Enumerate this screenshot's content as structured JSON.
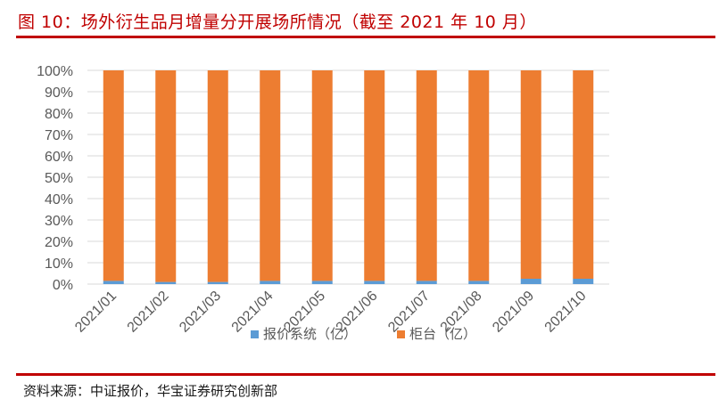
{
  "figure": {
    "title": "图 10：场外衍生品月增量分开展场所情况（截至 2021 年 10 月）",
    "source": "资料来源：中证报价，华宝证券研究创新部"
  },
  "colors": {
    "accent": "#c00000",
    "series_blue": "#5b9bd5",
    "series_orange": "#ed7d31",
    "grid": "#d9d9d9"
  },
  "chart_data": {
    "type": "bar",
    "stacked": true,
    "percent": true,
    "categories": [
      "2021/01",
      "2021/02",
      "2021/03",
      "2021/04",
      "2021/05",
      "2021/06",
      "2021/07",
      "2021/08",
      "2021/09",
      "2021/10"
    ],
    "series": [
      {
        "name": "报价系统（亿）",
        "color": "#5b9bd5",
        "values": [
          1.5,
          1.0,
          1.0,
          1.5,
          1.5,
          1.5,
          1.5,
          1.5,
          2.5,
          2.5
        ]
      },
      {
        "name": "柜台（亿）",
        "color": "#ed7d31",
        "values": [
          98.5,
          99.0,
          99.0,
          98.5,
          98.5,
          98.5,
          98.5,
          98.5,
          97.5,
          97.5
        ]
      }
    ],
    "yticks": [
      "0%",
      "10%",
      "20%",
      "30%",
      "40%",
      "50%",
      "60%",
      "70%",
      "80%",
      "90%",
      "100%"
    ],
    "ylim": [
      0,
      100
    ],
    "grid": true,
    "legend_position": "bottom"
  }
}
